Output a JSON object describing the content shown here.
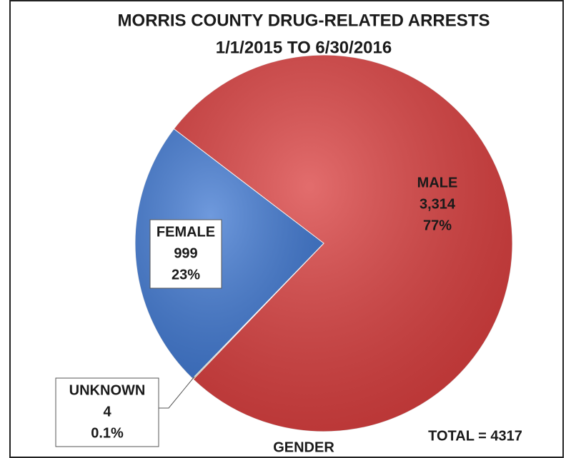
{
  "chart_data": {
    "type": "pie",
    "title": [
      "MORRIS COUNTY DRUG-RELATED ARRESTS",
      "1/1/2015 TO 6/30/2016"
    ],
    "categories": [
      "MALE",
      "UNKNOWN",
      "FEMALE"
    ],
    "values": [
      3314,
      4,
      999
    ],
    "value_labels": [
      "3,314",
      "4",
      "999"
    ],
    "percentages": [
      77,
      0.1,
      23
    ],
    "percentage_labels": [
      "77%",
      "0.1%",
      "23%"
    ],
    "colors": [
      "#d93c3c",
      "#9aa85a",
      "#3f78d2"
    ],
    "x_label": "GENDER",
    "annotation": "TOTAL = 4317"
  }
}
